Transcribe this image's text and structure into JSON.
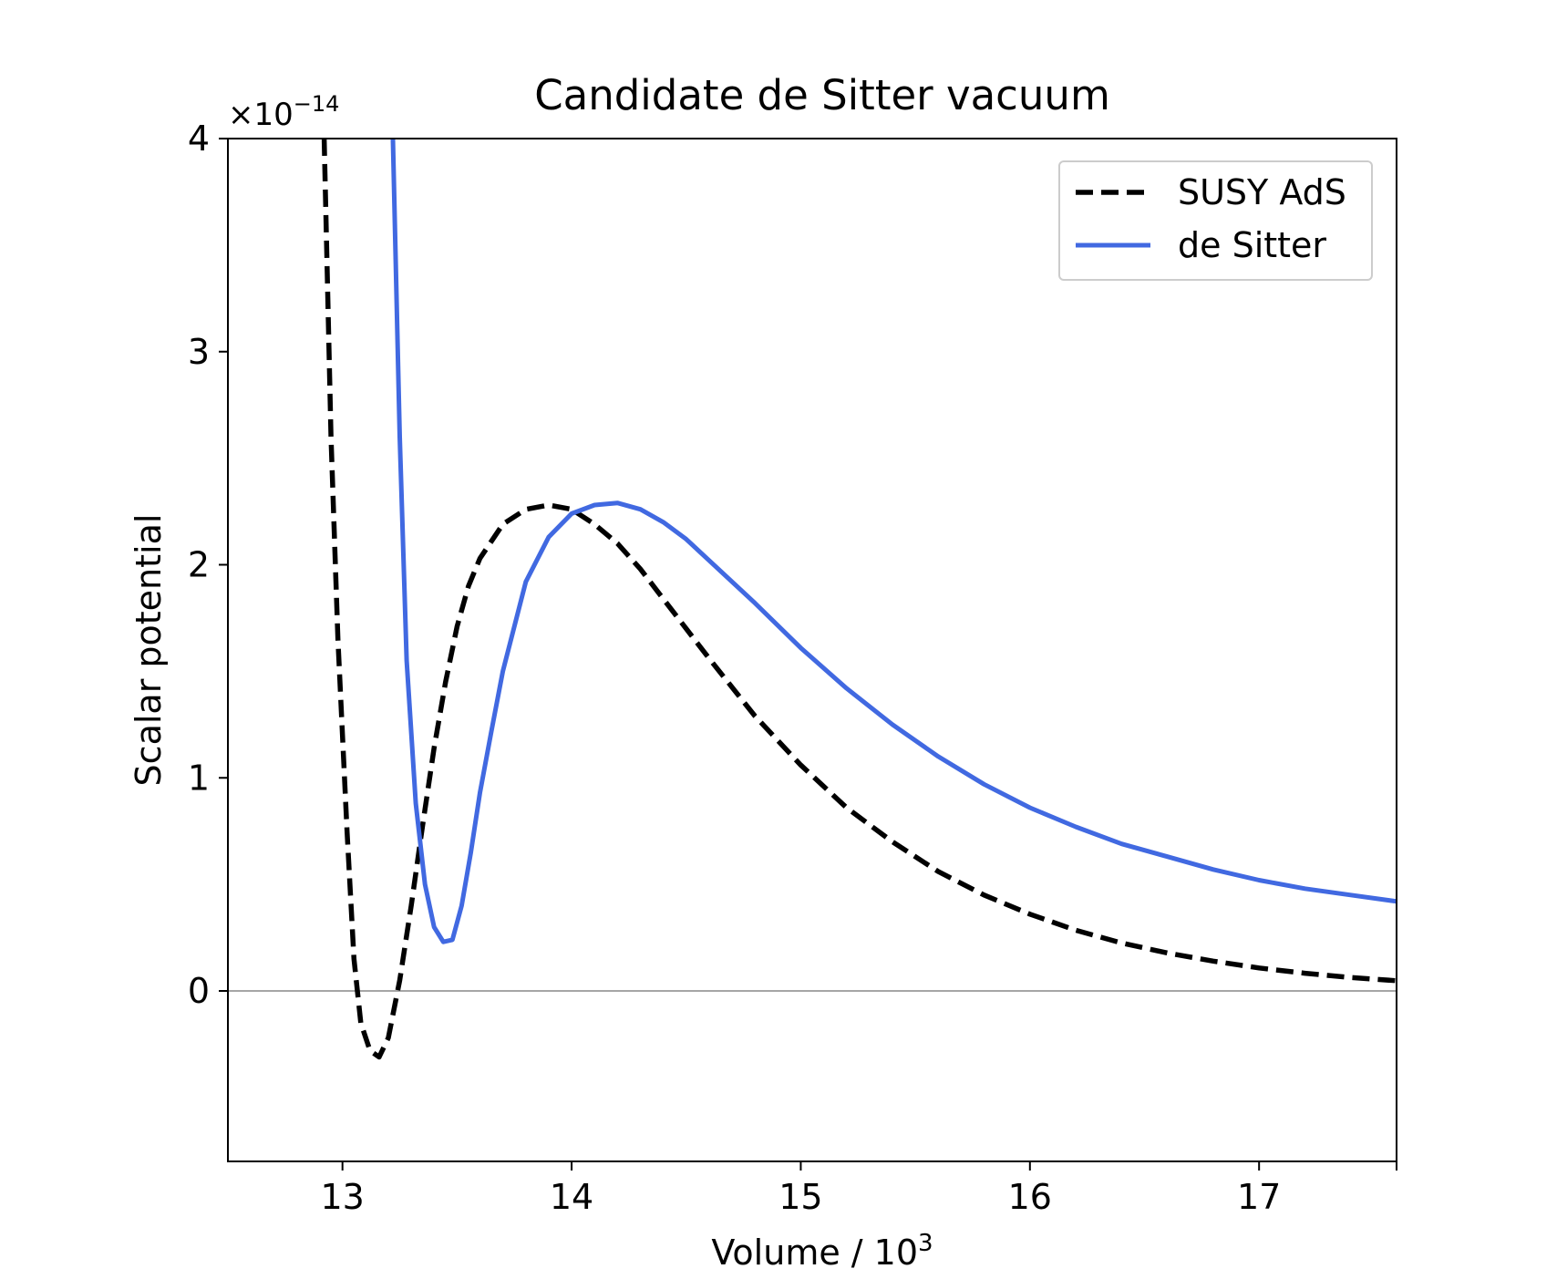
{
  "chart_data": {
    "type": "line",
    "title": "Candidate de Sitter vacuum",
    "xlabel": "Volume / 10",
    "xlabel_superscript": "3",
    "ylabel": "Scalar potential",
    "y_scale_prefix": "×10",
    "y_scale_exponent": "−14",
    "xlim": [
      12.5,
      17.6
    ],
    "ylim": [
      -0.8,
      4.0
    ],
    "x_ticks": [
      13,
      14,
      15,
      16,
      17
    ],
    "x_tick_labels": [
      "13",
      "14",
      "15",
      "16",
      "17"
    ],
    "y_ticks": [
      0,
      1,
      2,
      3,
      4
    ],
    "y_tick_labels": [
      "0",
      "1",
      "2",
      "3",
      "4"
    ],
    "grid": false,
    "zero_line": true,
    "legend_position": "upper-right",
    "series": [
      {
        "name": "SUSY AdS",
        "color": "#000000",
        "style": "dashed",
        "points": [
          [
            12.92,
            4.0
          ],
          [
            12.95,
            2.6
          ],
          [
            12.98,
            1.65
          ],
          [
            13.02,
            0.75
          ],
          [
            13.05,
            0.15
          ],
          [
            13.08,
            -0.15
          ],
          [
            13.12,
            -0.28
          ],
          [
            13.16,
            -0.31
          ],
          [
            13.2,
            -0.22
          ],
          [
            13.25,
            0.05
          ],
          [
            13.3,
            0.4
          ],
          [
            13.35,
            0.78
          ],
          [
            13.4,
            1.14
          ],
          [
            13.45,
            1.45
          ],
          [
            13.5,
            1.71
          ],
          [
            13.55,
            1.9
          ],
          [
            13.6,
            2.03
          ],
          [
            13.7,
            2.19
          ],
          [
            13.8,
            2.26
          ],
          [
            13.9,
            2.28
          ],
          [
            14.0,
            2.26
          ],
          [
            14.1,
            2.19
          ],
          [
            14.2,
            2.1
          ],
          [
            14.3,
            1.98
          ],
          [
            14.4,
            1.84
          ],
          [
            14.5,
            1.7
          ],
          [
            14.6,
            1.56
          ],
          [
            14.8,
            1.29
          ],
          [
            15.0,
            1.06
          ],
          [
            15.2,
            0.86
          ],
          [
            15.4,
            0.7
          ],
          [
            15.6,
            0.56
          ],
          [
            15.8,
            0.45
          ],
          [
            16.0,
            0.36
          ],
          [
            16.2,
            0.285
          ],
          [
            16.4,
            0.225
          ],
          [
            16.6,
            0.178
          ],
          [
            16.8,
            0.14
          ],
          [
            17.0,
            0.108
          ],
          [
            17.2,
            0.083
          ],
          [
            17.4,
            0.063
          ],
          [
            17.6,
            0.048
          ]
        ]
      },
      {
        "name": "de Sitter",
        "color": "#4169e1",
        "style": "solid",
        "points": [
          [
            13.22,
            4.0
          ],
          [
            13.25,
            2.6
          ],
          [
            13.28,
            1.55
          ],
          [
            13.32,
            0.88
          ],
          [
            13.36,
            0.5
          ],
          [
            13.4,
            0.3
          ],
          [
            13.44,
            0.23
          ],
          [
            13.48,
            0.24
          ],
          [
            13.52,
            0.4
          ],
          [
            13.56,
            0.65
          ],
          [
            13.6,
            0.93
          ],
          [
            13.65,
            1.22
          ],
          [
            13.7,
            1.5
          ],
          [
            13.8,
            1.92
          ],
          [
            13.9,
            2.13
          ],
          [
            14.0,
            2.24
          ],
          [
            14.1,
            2.28
          ],
          [
            14.2,
            2.29
          ],
          [
            14.3,
            2.26
          ],
          [
            14.4,
            2.2
          ],
          [
            14.5,
            2.12
          ],
          [
            14.6,
            2.02
          ],
          [
            14.8,
            1.82
          ],
          [
            15.0,
            1.61
          ],
          [
            15.2,
            1.42
          ],
          [
            15.4,
            1.25
          ],
          [
            15.6,
            1.1
          ],
          [
            15.8,
            0.97
          ],
          [
            16.0,
            0.86
          ],
          [
            16.2,
            0.77
          ],
          [
            16.4,
            0.69
          ],
          [
            16.6,
            0.63
          ],
          [
            16.8,
            0.57
          ],
          [
            17.0,
            0.52
          ],
          [
            17.2,
            0.48
          ],
          [
            17.4,
            0.45
          ],
          [
            17.6,
            0.42
          ]
        ]
      }
    ]
  }
}
